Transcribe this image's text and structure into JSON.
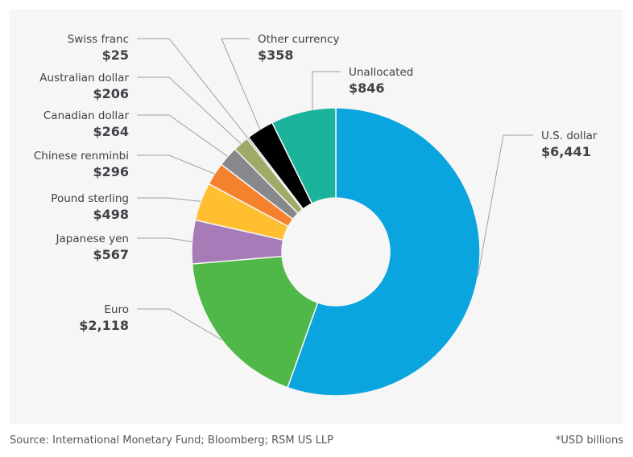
{
  "chart_data": {
    "type": "pie",
    "subtype": "donut",
    "start": "top, clockwise",
    "slices": [
      {
        "label": "U.S. dollar",
        "value": 6441,
        "display": "$6,441",
        "color": "#0aa4de"
      },
      {
        "label": "Euro",
        "value": 2118,
        "display": "$2,118",
        "color": "#50b848"
      },
      {
        "label": "Japanese yen",
        "value": 567,
        "display": "$567",
        "color": "#a77bb8"
      },
      {
        "label": "Pound sterling",
        "value": 498,
        "display": "$498",
        "color": "#ffbf30"
      },
      {
        "label": "Chinese renminbi",
        "value": 296,
        "display": "$296",
        "color": "#f4812d"
      },
      {
        "label": "Canadian dollar",
        "value": 264,
        "display": "$264",
        "color": "#86888b"
      },
      {
        "label": "Australian dollar",
        "value": 206,
        "display": "$206",
        "color": "#a1a968"
      },
      {
        "label": "Swiss franc",
        "value": 25,
        "display": "$25",
        "color": "#8a8c8f"
      },
      {
        "label": "Other currency",
        "value": 358,
        "display": "$358",
        "color": "#000000"
      },
      {
        "label": "Unallocated",
        "value": 846,
        "display": "$846",
        "color": "#1bb39b"
      }
    ],
    "source": "Source: International Monetary Fund; Bloomberg; RSM US LLP",
    "unit_note": "*USD billions"
  }
}
